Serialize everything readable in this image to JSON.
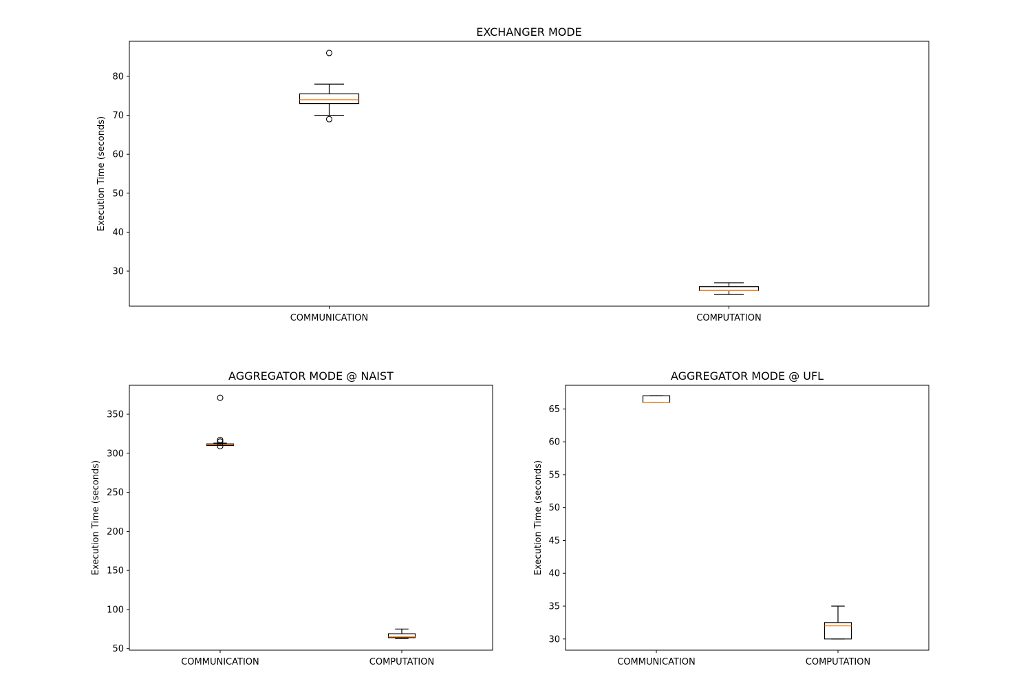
{
  "colors": {
    "median": "#ff7f0e",
    "box": "#000000",
    "background": "#ffffff"
  },
  "chart_data": [
    {
      "type": "boxplot",
      "title": "EXCHANGER MODE",
      "xlabel": "",
      "ylabel": "Execution Time (seconds)",
      "ylim": [
        21,
        89
      ],
      "yticks": [
        30,
        40,
        50,
        60,
        70,
        80
      ],
      "ytick_labels": [
        "30",
        "40",
        "50",
        "60",
        "70",
        "80"
      ],
      "categories": [
        "COMMUNICATION",
        "COMPUTATION"
      ],
      "boxes": [
        {
          "category": "COMMUNICATION",
          "whisker_low": 70,
          "q1": 73,
          "median": 74,
          "q3": 75.5,
          "whisker_high": 78,
          "outliers": [
            86,
            69
          ]
        },
        {
          "category": "COMPUTATION",
          "whisker_low": 24,
          "q1": 25,
          "median": 25,
          "q3": 26,
          "whisker_high": 27,
          "outliers": []
        }
      ]
    },
    {
      "type": "boxplot",
      "title": "AGGREGATOR MODE @ NAIST",
      "xlabel": "",
      "ylabel": "Execution Time (seconds)",
      "ylim": [
        48,
        387
      ],
      "yticks": [
        50,
        100,
        150,
        200,
        250,
        300,
        350
      ],
      "ytick_labels": [
        "50",
        "100",
        "150",
        "200",
        "250",
        "300",
        "350"
      ],
      "categories": [
        "COMMUNICATION",
        "COMPUTATION"
      ],
      "boxes": [
        {
          "category": "COMMUNICATION",
          "whisker_low": 310,
          "q1": 310,
          "median": 311,
          "q3": 312,
          "whisker_high": 313,
          "outliers": [
            371,
            317,
            315,
            309
          ]
        },
        {
          "category": "COMPUTATION",
          "whisker_low": 63,
          "q1": 64,
          "median": 65,
          "q3": 69,
          "whisker_high": 75,
          "outliers": []
        }
      ]
    },
    {
      "type": "boxplot",
      "title": "AGGREGATOR MODE @ UFL",
      "xlabel": "",
      "ylabel": "Execution Time (seconds)",
      "ylim": [
        28.3,
        68.6
      ],
      "yticks": [
        30,
        35,
        40,
        45,
        50,
        55,
        60,
        65
      ],
      "ytick_labels": [
        "30",
        "35",
        "40",
        "45",
        "50",
        "55",
        "60",
        "65"
      ],
      "categories": [
        "COMMUNICATION",
        "COMPUTATION"
      ],
      "boxes": [
        {
          "category": "COMMUNICATION",
          "whisker_low": 66,
          "q1": 66,
          "median": 66,
          "q3": 67,
          "whisker_high": 67,
          "outliers": []
        },
        {
          "category": "COMPUTATION",
          "whisker_low": 30,
          "q1": 30,
          "median": 32,
          "q3": 32.5,
          "whisker_high": 35,
          "outliers": []
        }
      ]
    }
  ]
}
